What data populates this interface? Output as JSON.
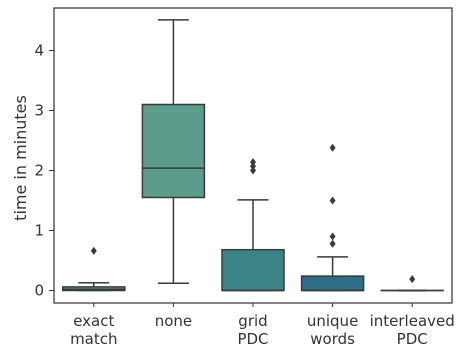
{
  "chart_data": {
    "type": "boxplot",
    "ylabel": "time in minutes",
    "xlabel": "",
    "ylim": [
      -0.22,
      4.72
    ],
    "yticks": [
      0,
      1,
      2,
      3,
      4
    ],
    "grid": false,
    "categories": [
      {
        "label_lines": [
          "exact",
          "match"
        ],
        "color": "#5e9b86",
        "whisker_low": 0.0,
        "q1": 0.0,
        "median": 0.02,
        "q3": 0.06,
        "whisker_high": 0.13,
        "outliers": [
          0.66
        ]
      },
      {
        "label_lines": [
          "none"
        ],
        "color": "#5c9c8d",
        "whisker_low": 0.12,
        "q1": 1.55,
        "median": 2.04,
        "q3": 3.1,
        "whisker_high": 4.51,
        "outliers": []
      },
      {
        "label_lines": [
          "grid",
          "PDC"
        ],
        "color": "#3c8387",
        "whisker_low": 0.0,
        "q1": 0.0,
        "median": 0.0,
        "q3": 0.68,
        "whisker_high": 1.51,
        "outliers": [
          2.0,
          2.07,
          2.14
        ]
      },
      {
        "label_lines": [
          "unique",
          "words"
        ],
        "color": "#2c6e88",
        "whisker_low": 0.0,
        "q1": 0.0,
        "median": 0.0,
        "q3": 0.24,
        "whisker_high": 0.56,
        "outliers": [
          0.78,
          0.9,
          1.5,
          2.38
        ]
      },
      {
        "label_lines": [
          "interleaved",
          "PDC"
        ],
        "color": "#2e5f7d",
        "whisker_low": 0.0,
        "q1": 0.0,
        "median": 0.0,
        "q3": 0.0,
        "whisker_high": 0.0,
        "outliers": [
          0.19
        ]
      }
    ]
  }
}
